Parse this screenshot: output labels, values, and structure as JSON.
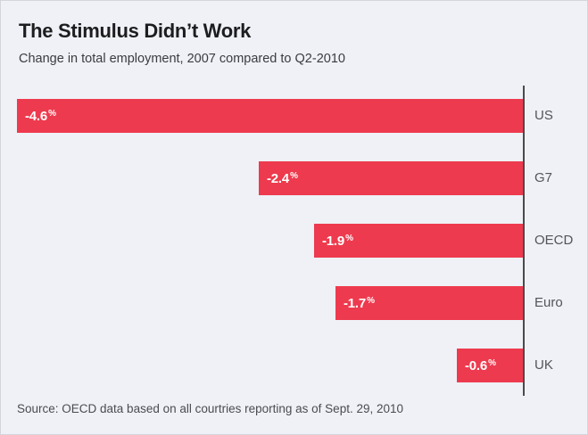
{
  "chart_data": {
    "type": "bar",
    "orientation": "horizontal",
    "title": "The Stimulus Didn’t Work",
    "subtitle": "Change in total employment, 2007 compared to Q2-2010",
    "source": "Source: OECD data based on all courtries reporting as of Sept. 29, 2010",
    "categories": [
      "US",
      "G7",
      "OECD",
      "Euro",
      "UK"
    ],
    "values": [
      -4.6,
      -2.4,
      -1.9,
      -1.7,
      -0.6
    ],
    "value_labels": [
      "-4.6",
      "-2.4",
      "-1.9",
      "-1.7",
      "-0.6"
    ],
    "unit": "%",
    "xlim": [
      -4.6,
      0
    ],
    "grid": false,
    "legend": "none",
    "bar_color": "#ee3a4e",
    "axis_color": "#4a4a4a",
    "background_color": "#eff1f6"
  }
}
